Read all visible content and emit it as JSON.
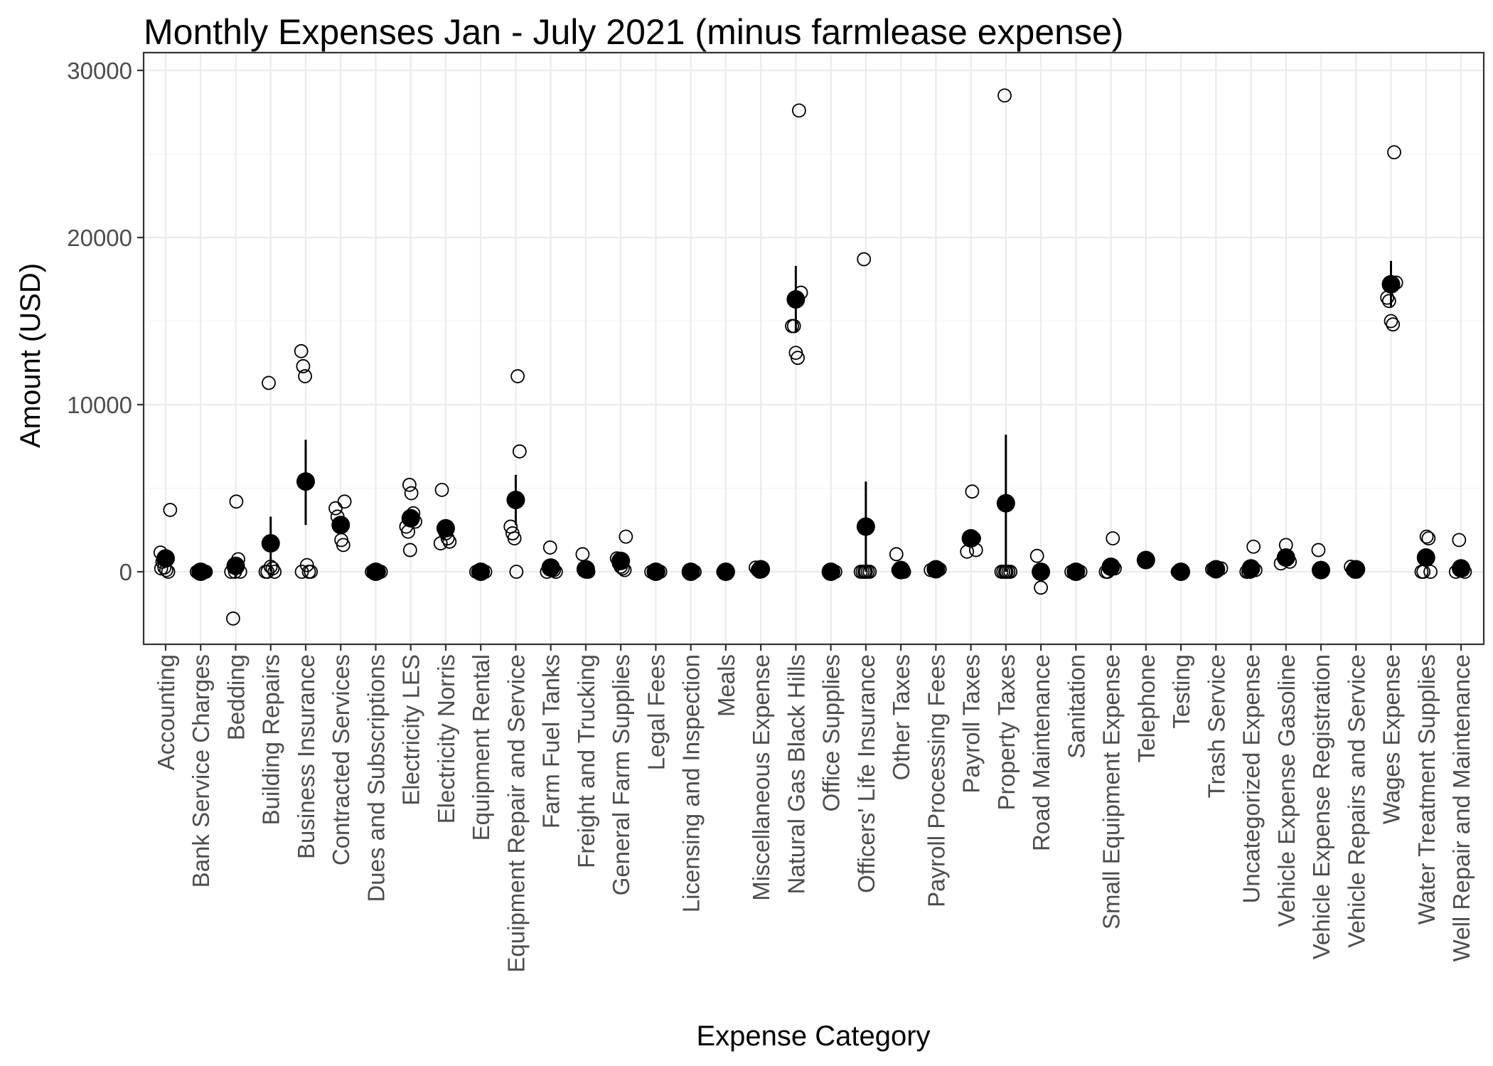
{
  "chart_data": {
    "type": "scatter",
    "title": "Monthly Expenses Jan - July 2021 (minus farmlease expense)",
    "xlabel": "Expense Category",
    "ylabel": "Amount (USD)",
    "ylim": [
      -4500,
      30000
    ],
    "yticks": [
      0,
      10000,
      20000,
      30000
    ],
    "grid": true,
    "legend": "none",
    "colors": {
      "panel_border": "#333333",
      "grid_major": "#ebebeb",
      "grid_minor": "#f5f5f5",
      "points": "#000000"
    },
    "categories": [
      {
        "name": "Accounting",
        "mean": 800,
        "error": [
          null,
          null
        ],
        "points": [
          1150,
          600,
          250,
          100,
          0,
          3700,
          200
        ]
      },
      {
        "name": "Bank Service Charges",
        "mean": 0,
        "error": [
          null,
          null
        ],
        "points": [
          0,
          0,
          0,
          0,
          0,
          0,
          0
        ]
      },
      {
        "name": "Bedding",
        "mean": 350,
        "error": [
          null,
          null
        ],
        "points": [
          4200,
          750,
          0,
          0,
          -2800,
          0
        ]
      },
      {
        "name": "Building Repairs",
        "mean": 1700,
        "error": [
          0,
          3300
        ],
        "points": [
          11300,
          300,
          200,
          0,
          0,
          0
        ]
      },
      {
        "name": "Business Insurance",
        "mean": 5400,
        "error": [
          2800,
          7900
        ],
        "points": [
          13200,
          12300,
          11700,
          400,
          0,
          0,
          0
        ]
      },
      {
        "name": "Contracted Services",
        "mean": 2800,
        "error": [
          null,
          null
        ],
        "points": [
          4200,
          3800,
          3300,
          2800,
          1900,
          1600
        ]
      },
      {
        "name": "Dues and Subscriptions",
        "mean": 0,
        "error": [
          null,
          null
        ],
        "points": [
          0,
          0,
          0,
          0
        ]
      },
      {
        "name": "Electricity LES",
        "mean": 3200,
        "error": [
          null,
          null
        ],
        "points": [
          5200,
          4700,
          3500,
          3000,
          2700,
          2400,
          1300
        ]
      },
      {
        "name": "Electricity Norris",
        "mean": 2600,
        "error": [
          null,
          null
        ],
        "points": [
          4900,
          2600,
          2300,
          2000,
          1800,
          1700
        ]
      },
      {
        "name": "Equipment Rental",
        "mean": 0,
        "error": [
          null,
          null
        ],
        "points": [
          0,
          0,
          0
        ]
      },
      {
        "name": "Equipment Repair and Service",
        "mean": 4300,
        "error": [
          2800,
          5800
        ],
        "points": [
          11700,
          7200,
          2700,
          2300,
          2000,
          0
        ]
      },
      {
        "name": "Farm Fuel Tanks",
        "mean": 250,
        "error": [
          null,
          null
        ],
        "points": [
          1450,
          300,
          100,
          0,
          0
        ]
      },
      {
        "name": "Freight and Trucking",
        "mean": 150,
        "error": [
          null,
          null
        ],
        "points": [
          1050,
          100,
          0,
          0
        ]
      },
      {
        "name": "General Farm Supplies",
        "mean": 650,
        "error": [
          null,
          null
        ],
        "points": [
          2100,
          800,
          500,
          300,
          200,
          100
        ]
      },
      {
        "name": "Legal Fees",
        "mean": 0,
        "error": [
          null,
          null
        ],
        "points": [
          0,
          0,
          0
        ]
      },
      {
        "name": "Licensing and Inspection",
        "mean": 0,
        "error": [
          null,
          null
        ],
        "points": [
          0,
          0,
          0
        ]
      },
      {
        "name": "Meals",
        "mean": 0,
        "error": [
          null,
          null
        ],
        "points": [
          0,
          0,
          0
        ]
      },
      {
        "name": "Miscellaneous Expense",
        "mean": 150,
        "error": [
          null,
          null
        ],
        "points": [
          250,
          100,
          0
        ]
      },
      {
        "name": "Natural Gas Black Hills",
        "mean": 16300,
        "error": [
          14300,
          18300
        ],
        "points": [
          27600,
          16700,
          14700,
          14700,
          13100,
          12800
        ]
      },
      {
        "name": "Office Supplies",
        "mean": 0,
        "error": [
          null,
          null
        ],
        "points": [
          0,
          0,
          0
        ]
      },
      {
        "name": "Officers' Life Insurance",
        "mean": 2700,
        "error": [
          0,
          5400
        ],
        "points": [
          18700,
          0,
          0,
          0,
          0,
          0,
          0
        ]
      },
      {
        "name": "Other Taxes",
        "mean": 100,
        "error": [
          null,
          null
        ],
        "points": [
          1050,
          100,
          0,
          0,
          0
        ]
      },
      {
        "name": "Payroll Processing Fees",
        "mean": 150,
        "error": [
          null,
          null
        ],
        "points": [
          150,
          100
        ]
      },
      {
        "name": "Payroll Taxes",
        "mean": 2000,
        "error": [
          null,
          null
        ],
        "points": [
          4800,
          2000,
          1300,
          1200
        ]
      },
      {
        "name": "Property Taxes",
        "mean": 4100,
        "error": [
          0,
          8200
        ],
        "points": [
          28500,
          0,
          0,
          0,
          0,
          0,
          0
        ]
      },
      {
        "name": "Road Maintenance",
        "mean": 0,
        "error": [
          null,
          null
        ],
        "points": [
          950,
          0,
          -950
        ]
      },
      {
        "name": "Sanitation",
        "mean": 0,
        "error": [
          null,
          null
        ],
        "points": [
          0,
          0
        ]
      },
      {
        "name": "Small Equipment Expense",
        "mean": 300,
        "error": [
          null,
          null
        ],
        "points": [
          2000,
          200,
          0,
          0
        ]
      },
      {
        "name": "Telephone",
        "mean": 700,
        "error": [
          null,
          null
        ],
        "points": [
          750,
          650
        ]
      },
      {
        "name": "Testing",
        "mean": 0,
        "error": [
          null,
          null
        ],
        "points": [
          0,
          0
        ]
      },
      {
        "name": "Trash Service",
        "mean": 150,
        "error": [
          null,
          null
        ],
        "points": [
          200,
          150
        ]
      },
      {
        "name": "Uncategorized Expense",
        "mean": 200,
        "error": [
          null,
          null
        ],
        "points": [
          1500,
          100,
          0,
          0,
          0
        ]
      },
      {
        "name": "Vehicle Expense Gasoline",
        "mean": 850,
        "error": [
          null,
          null
        ],
        "points": [
          1600,
          800,
          600,
          500
        ]
      },
      {
        "name": "Vehicle Expense Registration",
        "mean": 100,
        "error": [
          null,
          null
        ],
        "points": [
          1300,
          0,
          0
        ]
      },
      {
        "name": "Vehicle Repairs and Service",
        "mean": 150,
        "error": [
          null,
          null
        ],
        "points": [
          300,
          100,
          0,
          0
        ]
      },
      {
        "name": "Wages Expense",
        "mean": 17200,
        "error": [
          15800,
          18600
        ],
        "points": [
          25100,
          17300,
          16400,
          16200,
          15000,
          14800
        ]
      },
      {
        "name": "Water Treatment Supplies",
        "mean": 850,
        "error": [
          null,
          null
        ],
        "points": [
          2100,
          2000,
          0,
          0,
          0
        ]
      },
      {
        "name": "Well Repair and Maintenance",
        "mean": 200,
        "error": [
          null,
          null
        ],
        "points": [
          1900,
          300,
          100,
          0,
          0
        ]
      }
    ]
  }
}
